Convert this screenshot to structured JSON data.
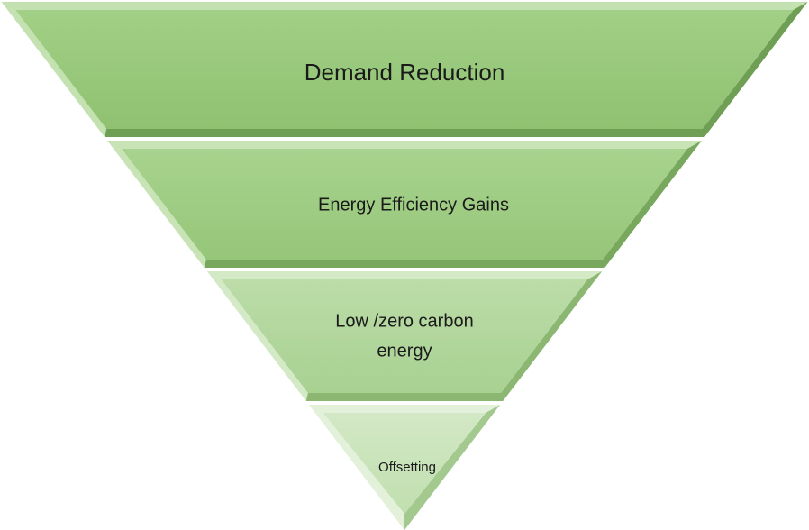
{
  "levels": [
    {
      "label": "Demand Reduction"
    },
    {
      "label": "Energy Efficiency Gains"
    },
    {
      "lines": [
        "Low /zero carbon",
        "energy"
      ]
    },
    {
      "label": "Offsetting"
    }
  ]
}
